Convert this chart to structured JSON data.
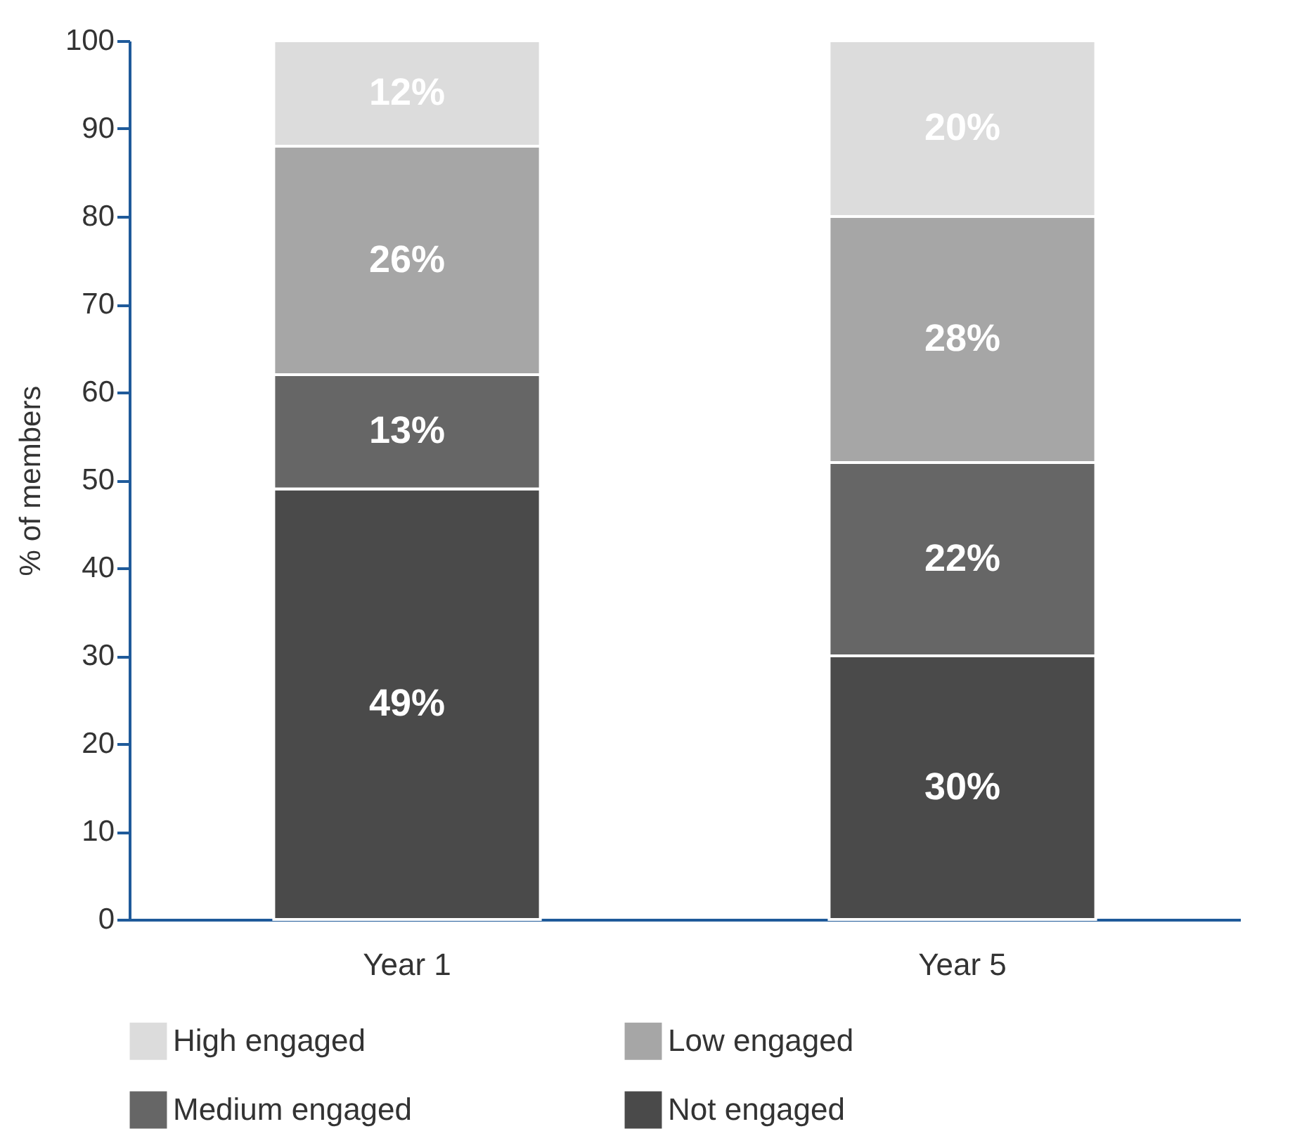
{
  "chart_data": {
    "type": "bar",
    "stacked": true,
    "ylabel": "% of members",
    "categories": [
      "Year 1",
      "Year 5"
    ],
    "ylim": [
      0,
      100
    ],
    "yticks": [
      0,
      10,
      20,
      30,
      40,
      50,
      60,
      70,
      80,
      90,
      100
    ],
    "legend": "bottom",
    "grid": false,
    "series": [
      {
        "name": "Not engaged",
        "color": "#4a4a4a",
        "values": [
          49,
          30
        ],
        "value_labels": [
          "49%",
          "30%"
        ]
      },
      {
        "name": "Medium engaged",
        "color": "#666666",
        "values": [
          13,
          22
        ],
        "value_labels": [
          "13%",
          "22%"
        ]
      },
      {
        "name": "Low engaged",
        "color": "#a6a6a6",
        "values": [
          26,
          28
        ],
        "value_labels": [
          "26%",
          "28%"
        ]
      },
      {
        "name": "High engaged",
        "color": "#dcdcdc",
        "values": [
          12,
          20
        ],
        "value_labels": [
          "12%",
          "20%"
        ]
      }
    ]
  }
}
